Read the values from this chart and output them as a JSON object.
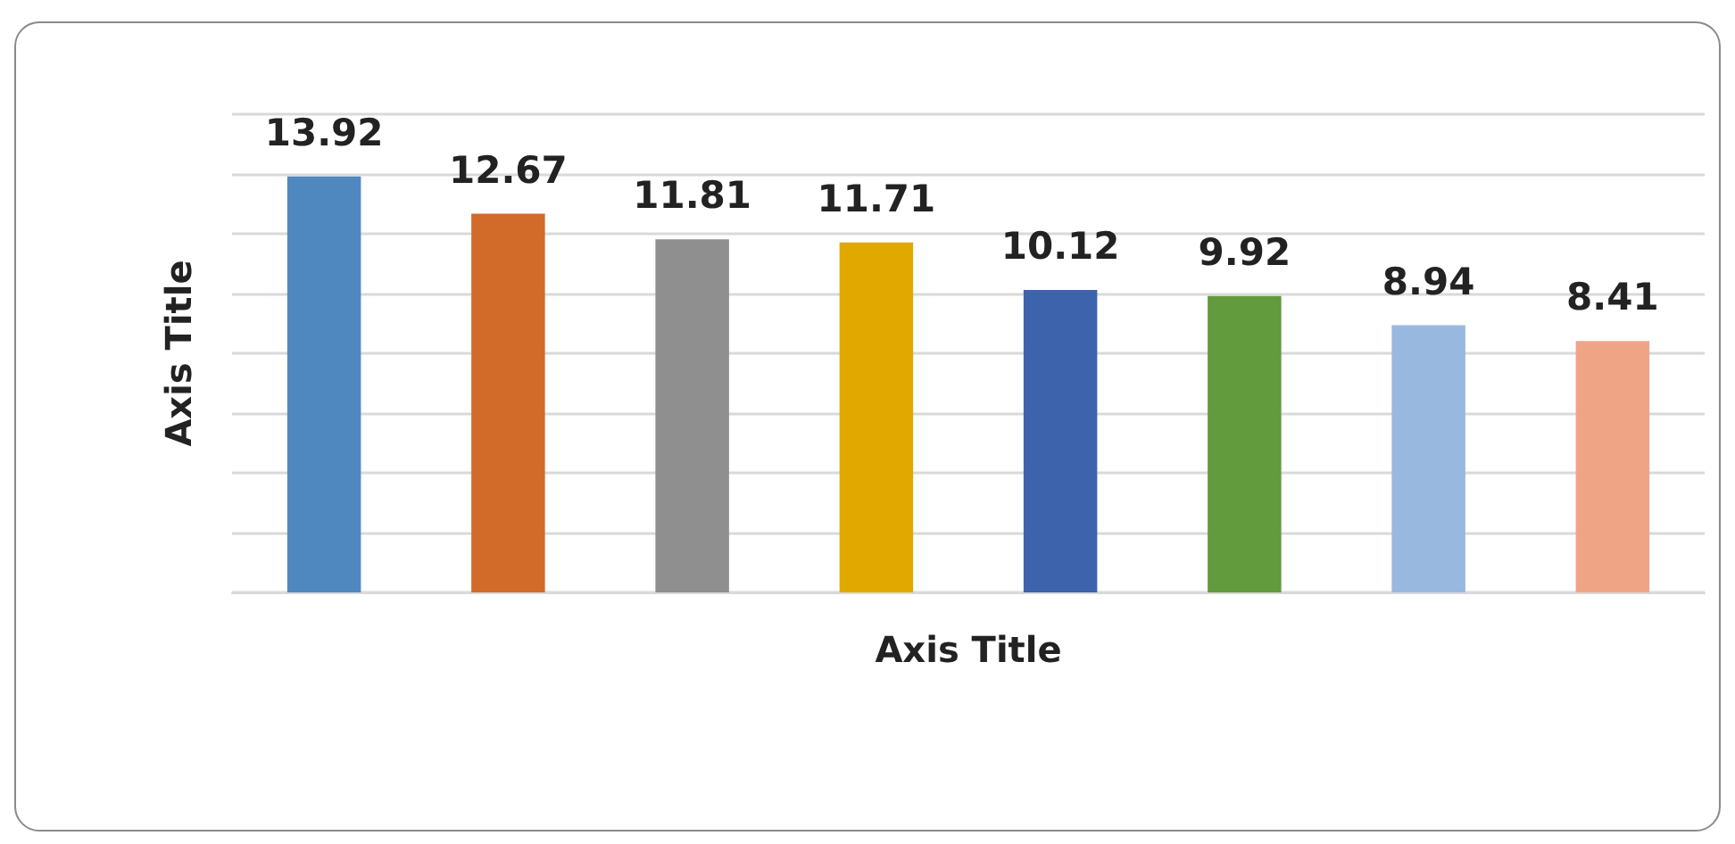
{
  "chart_data": {
    "type": "bar",
    "xlabel": "Axis Title",
    "ylabel": "Axis Title",
    "categories": [
      null,
      null,
      null,
      null,
      null,
      null,
      null,
      null
    ],
    "values": [
      13.92,
      12.67,
      11.81,
      11.71,
      10.12,
      9.92,
      8.94,
      8.41
    ],
    "colors": [
      "#4f88bf",
      "#d26b29",
      "#8f8f8f",
      "#e1a900",
      "#3d63ad",
      "#629a3e",
      "#98b8e0",
      "#f0a486"
    ],
    "data_labels": true,
    "ylim": [
      0,
      16
    ],
    "yticks": [
      {
        "value": 0,
        "label": null
      },
      {
        "value": 2,
        "label": null
      },
      {
        "value": 4,
        "label": null
      },
      {
        "value": 6,
        "label": null
      },
      {
        "value": 8,
        "label": null
      },
      {
        "value": 10,
        "label": null
      },
      {
        "value": 12,
        "label": null
      },
      {
        "value": 14,
        "label": null
      },
      {
        "value": 16,
        "label": null
      }
    ],
    "grid": "y",
    "tick_labels": false
  }
}
